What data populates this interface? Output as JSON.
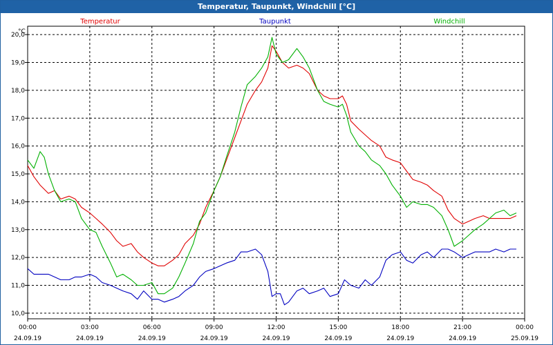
{
  "window": {
    "title": "Temperatur, Taupunkt, Windchill [°C]"
  },
  "chart_data": {
    "type": "line",
    "title": "Temperatur, Taupunkt, Windchill [°C]",
    "ylabel": "°C",
    "ylim": [
      9.8,
      20.3
    ],
    "xlim": [
      0,
      24
    ],
    "grid": true,
    "legend": "top",
    "y_ticks": [
      "10,0",
      "11,0",
      "12,0",
      "13,0",
      "14,0",
      "15,0",
      "16,0",
      "17,0",
      "18,0",
      "19,0",
      "20,0"
    ],
    "x_ticks": [
      {
        "time": "00:00",
        "date": "24.09.19"
      },
      {
        "time": "03:00",
        "date": "24.09.19"
      },
      {
        "time": "06:00",
        "date": "24.09.19"
      },
      {
        "time": "09:00",
        "date": "24.09.19"
      },
      {
        "time": "12:00",
        "date": "24.09.19"
      },
      {
        "time": "15:00",
        "date": "24.09.19"
      },
      {
        "time": "18:00",
        "date": "24.09.19"
      },
      {
        "time": "21:00",
        "date": "24.09.19"
      },
      {
        "time": "00:00",
        "date": "25.09.19"
      }
    ],
    "series": [
      {
        "name": "Temperatur",
        "color": "#e00000",
        "points": [
          [
            0,
            15.3
          ],
          [
            0.3,
            14.9
          ],
          [
            0.6,
            14.6
          ],
          [
            1,
            14.3
          ],
          [
            1.3,
            14.4
          ],
          [
            1.6,
            14.1
          ],
          [
            2,
            14.2
          ],
          [
            2.3,
            14.1
          ],
          [
            2.6,
            13.8
          ],
          [
            3,
            13.6
          ],
          [
            3.3,
            13.4
          ],
          [
            3.6,
            13.2
          ],
          [
            4,
            12.9
          ],
          [
            4.3,
            12.6
          ],
          [
            4.6,
            12.4
          ],
          [
            5,
            12.5
          ],
          [
            5.3,
            12.2
          ],
          [
            5.6,
            12.0
          ],
          [
            6,
            11.8
          ],
          [
            6.3,
            11.7
          ],
          [
            6.6,
            11.7
          ],
          [
            7,
            11.9
          ],
          [
            7.3,
            12.1
          ],
          [
            7.6,
            12.5
          ],
          [
            8,
            12.8
          ],
          [
            8.3,
            13.2
          ],
          [
            8.6,
            13.8
          ],
          [
            9,
            14.4
          ],
          [
            9.3,
            14.9
          ],
          [
            9.6,
            15.5
          ],
          [
            10,
            16.3
          ],
          [
            10.3,
            16.9
          ],
          [
            10.6,
            17.5
          ],
          [
            11,
            18.0
          ],
          [
            11.3,
            18.3
          ],
          [
            11.6,
            18.8
          ],
          [
            11.8,
            19.6
          ],
          [
            12,
            19.4
          ],
          [
            12.3,
            19.0
          ],
          [
            12.6,
            18.8
          ],
          [
            13,
            18.9
          ],
          [
            13.3,
            18.8
          ],
          [
            13.6,
            18.6
          ],
          [
            14,
            18.0
          ],
          [
            14.3,
            17.8
          ],
          [
            14.6,
            17.7
          ],
          [
            15,
            17.7
          ],
          [
            15.2,
            17.8
          ],
          [
            15.4,
            17.5
          ],
          [
            15.6,
            16.9
          ],
          [
            16,
            16.6
          ],
          [
            16.3,
            16.4
          ],
          [
            16.6,
            16.2
          ],
          [
            17,
            16.0
          ],
          [
            17.3,
            15.6
          ],
          [
            17.6,
            15.5
          ],
          [
            18,
            15.4
          ],
          [
            18.3,
            15.1
          ],
          [
            18.6,
            14.8
          ],
          [
            19,
            14.7
          ],
          [
            19.3,
            14.6
          ],
          [
            19.6,
            14.4
          ],
          [
            20,
            14.2
          ],
          [
            20.3,
            13.7
          ],
          [
            20.6,
            13.4
          ],
          [
            21,
            13.2
          ],
          [
            21.3,
            13.3
          ],
          [
            21.6,
            13.4
          ],
          [
            22,
            13.5
          ],
          [
            22.3,
            13.4
          ],
          [
            22.6,
            13.4
          ],
          [
            23,
            13.4
          ],
          [
            23.3,
            13.4
          ],
          [
            23.6,
            13.5
          ]
        ]
      },
      {
        "name": "Taupunkt",
        "color": "#0000c0",
        "points": [
          [
            0,
            11.6
          ],
          [
            0.3,
            11.4
          ],
          [
            0.6,
            11.4
          ],
          [
            1,
            11.4
          ],
          [
            1.3,
            11.3
          ],
          [
            1.6,
            11.2
          ],
          [
            2,
            11.2
          ],
          [
            2.3,
            11.3
          ],
          [
            2.6,
            11.3
          ],
          [
            3,
            11.4
          ],
          [
            3.3,
            11.3
          ],
          [
            3.6,
            11.1
          ],
          [
            4,
            11.0
          ],
          [
            4.3,
            10.9
          ],
          [
            4.6,
            10.8
          ],
          [
            5,
            10.7
          ],
          [
            5.3,
            10.5
          ],
          [
            5.6,
            10.8
          ],
          [
            6,
            10.5
          ],
          [
            6.3,
            10.5
          ],
          [
            6.6,
            10.4
          ],
          [
            7,
            10.5
          ],
          [
            7.3,
            10.6
          ],
          [
            7.6,
            10.8
          ],
          [
            8,
            11.0
          ],
          [
            8.3,
            11.3
          ],
          [
            8.6,
            11.5
          ],
          [
            9,
            11.6
          ],
          [
            9.3,
            11.7
          ],
          [
            9.6,
            11.8
          ],
          [
            10,
            11.9
          ],
          [
            10.3,
            12.2
          ],
          [
            10.6,
            12.2
          ],
          [
            11,
            12.3
          ],
          [
            11.3,
            12.1
          ],
          [
            11.6,
            11.5
          ],
          [
            11.8,
            10.6
          ],
          [
            12,
            10.7
          ],
          [
            12.2,
            10.7
          ],
          [
            12.4,
            10.3
          ],
          [
            12.6,
            10.4
          ],
          [
            13,
            10.8
          ],
          [
            13.3,
            10.9
          ],
          [
            13.6,
            10.7
          ],
          [
            14,
            10.8
          ],
          [
            14.3,
            10.9
          ],
          [
            14.6,
            10.6
          ],
          [
            15,
            10.7
          ],
          [
            15.3,
            11.2
          ],
          [
            15.6,
            11.0
          ],
          [
            16,
            10.9
          ],
          [
            16.3,
            11.2
          ],
          [
            16.6,
            11.0
          ],
          [
            17,
            11.3
          ],
          [
            17.3,
            11.9
          ],
          [
            17.6,
            12.1
          ],
          [
            18,
            12.2
          ],
          [
            18.3,
            11.9
          ],
          [
            18.6,
            11.8
          ],
          [
            19,
            12.1
          ],
          [
            19.3,
            12.2
          ],
          [
            19.6,
            12.0
          ],
          [
            20,
            12.3
          ],
          [
            20.3,
            12.3
          ],
          [
            20.6,
            12.2
          ],
          [
            21,
            12.0
          ],
          [
            21.3,
            12.1
          ],
          [
            21.6,
            12.2
          ],
          [
            22,
            12.2
          ],
          [
            22.3,
            12.2
          ],
          [
            22.6,
            12.3
          ],
          [
            23,
            12.2
          ],
          [
            23.3,
            12.3
          ],
          [
            23.6,
            12.3
          ]
        ]
      },
      {
        "name": "Windchill",
        "color": "#00b000",
        "points": [
          [
            0,
            15.5
          ],
          [
            0.3,
            15.2
          ],
          [
            0.6,
            15.8
          ],
          [
            0.8,
            15.6
          ],
          [
            1,
            15.0
          ],
          [
            1.3,
            14.4
          ],
          [
            1.6,
            14.0
          ],
          [
            2,
            14.1
          ],
          [
            2.3,
            14.0
          ],
          [
            2.6,
            13.4
          ],
          [
            3,
            13.0
          ],
          [
            3.3,
            12.9
          ],
          [
            3.6,
            12.4
          ],
          [
            4,
            11.8
          ],
          [
            4.3,
            11.3
          ],
          [
            4.6,
            11.4
          ],
          [
            5,
            11.2
          ],
          [
            5.3,
            11.0
          ],
          [
            5.6,
            11.0
          ],
          [
            6,
            11.1
          ],
          [
            6.3,
            10.7
          ],
          [
            6.6,
            10.7
          ],
          [
            7,
            10.9
          ],
          [
            7.3,
            11.3
          ],
          [
            7.6,
            11.8
          ],
          [
            8,
            12.5
          ],
          [
            8.3,
            13.3
          ],
          [
            8.6,
            13.6
          ],
          [
            9,
            14.4
          ],
          [
            9.3,
            14.9
          ],
          [
            9.6,
            15.6
          ],
          [
            10,
            16.5
          ],
          [
            10.3,
            17.4
          ],
          [
            10.6,
            18.2
          ],
          [
            11,
            18.5
          ],
          [
            11.3,
            18.8
          ],
          [
            11.6,
            19.2
          ],
          [
            11.8,
            19.9
          ],
          [
            12,
            19.3
          ],
          [
            12.3,
            19.0
          ],
          [
            12.6,
            19.1
          ],
          [
            13,
            19.5
          ],
          [
            13.3,
            19.2
          ],
          [
            13.6,
            18.8
          ],
          [
            14,
            18.0
          ],
          [
            14.3,
            17.6
          ],
          [
            14.6,
            17.5
          ],
          [
            15,
            17.4
          ],
          [
            15.2,
            17.5
          ],
          [
            15.4,
            17.1
          ],
          [
            15.6,
            16.5
          ],
          [
            16,
            16.0
          ],
          [
            16.3,
            15.8
          ],
          [
            16.6,
            15.5
          ],
          [
            17,
            15.3
          ],
          [
            17.3,
            15.0
          ],
          [
            17.6,
            14.6
          ],
          [
            18,
            14.2
          ],
          [
            18.3,
            13.8
          ],
          [
            18.6,
            14.0
          ],
          [
            19,
            13.9
          ],
          [
            19.3,
            13.9
          ],
          [
            19.6,
            13.8
          ],
          [
            20,
            13.5
          ],
          [
            20.3,
            13.0
          ],
          [
            20.6,
            12.4
          ],
          [
            21,
            12.6
          ],
          [
            21.3,
            12.8
          ],
          [
            21.6,
            13.0
          ],
          [
            22,
            13.2
          ],
          [
            22.3,
            13.4
          ],
          [
            22.6,
            13.6
          ],
          [
            23,
            13.7
          ],
          [
            23.3,
            13.5
          ],
          [
            23.6,
            13.6
          ]
        ]
      }
    ]
  }
}
